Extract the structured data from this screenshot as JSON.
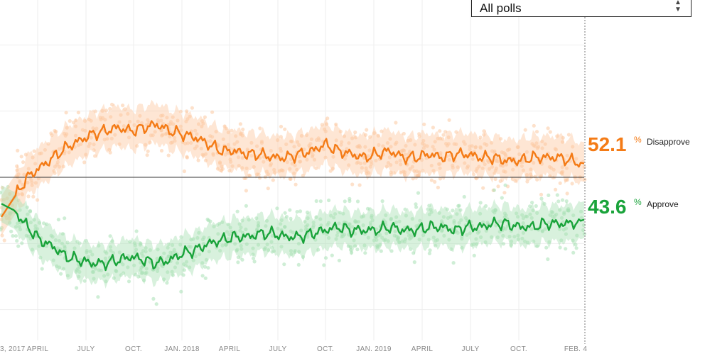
{
  "filter": {
    "selected": "All polls",
    "arrows_icon": "select-arrows-icon"
  },
  "colors": {
    "disapprove": "#f47b16",
    "disapprove_light": "#fcc8a0",
    "approve": "#19a33a",
    "approve_light": "#a8e0b4",
    "grid": "#eeeeee",
    "axis_text": "#888888"
  },
  "chart_data": {
    "type": "line",
    "title": "",
    "x_range": [
      "2017-01-23",
      "2019-02-04"
    ],
    "ylim": [
      20,
      80
    ],
    "reference_line": 50,
    "x_ticks": [
      "3, 2017",
      "APRIL",
      "JULY",
      "OCT.",
      "JAN. 2018",
      "APRIL",
      "JULY",
      "OCT.",
      "JAN. 2019",
      "APRIL",
      "JULY",
      "OCT.",
      "FEB. 4"
    ],
    "series": [
      {
        "name": "Disapprove",
        "label": "Disapprove",
        "final_value": "52.1",
        "pct_symbol": "%",
        "values": [
          44.0,
          47.0,
          50.0,
          51.5,
          53.0,
          54.5,
          55.5,
          56.5,
          57.0,
          57.5,
          57.0,
          57.5,
          58.0,
          57.0,
          56.5,
          56.0,
          55.0,
          54.0,
          54.0,
          53.5,
          53.5,
          53.0,
          53.0,
          53.5,
          54.0,
          55.0,
          54.0,
          53.5,
          53.0,
          53.5,
          54.0,
          53.0,
          53.0,
          53.5,
          53.0,
          53.5,
          53.5,
          53.0,
          53.0,
          52.5,
          52.5,
          53.0,
          53.0,
          53.0,
          52.5,
          52.1
        ]
      },
      {
        "name": "Approve",
        "label": "Approve",
        "final_value": "43.6",
        "pct_symbol": "%",
        "values": [
          46.0,
          45.0,
          42.5,
          40.5,
          39.5,
          38.0,
          37.5,
          37.0,
          37.0,
          37.5,
          38.0,
          37.5,
          37.0,
          37.5,
          38.5,
          39.0,
          40.0,
          40.5,
          41.0,
          41.0,
          41.5,
          41.5,
          41.0,
          41.0,
          41.5,
          42.0,
          42.5,
          42.0,
          42.0,
          42.0,
          42.5,
          42.0,
          42.0,
          42.5,
          42.5,
          42.0,
          42.5,
          42.5,
          43.0,
          43.0,
          42.5,
          42.5,
          43.0,
          43.0,
          43.0,
          43.6
        ]
      }
    ]
  }
}
